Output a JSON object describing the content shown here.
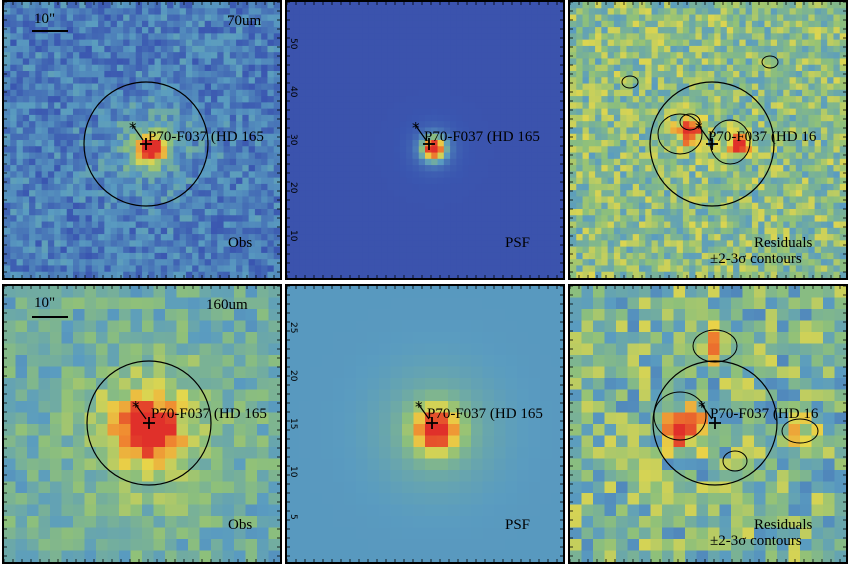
{
  "rows": [
    {
      "band": "70um",
      "scale_bar": "10\"",
      "panels": [
        {
          "id": "obs",
          "label": "Obs",
          "source": "P70-F037 (HD 165"
        },
        {
          "id": "psf",
          "label": "PSF",
          "source": "P70-F037 (HD 165"
        },
        {
          "id": "res",
          "label": "Residuals",
          "label2": "±2-3σ contours",
          "source": "P70-F037 (HD 16"
        }
      ],
      "axis_ticks": [
        "50",
        "40",
        "30",
        "20",
        "10"
      ]
    },
    {
      "band": "160um",
      "scale_bar": "10\"",
      "panels": [
        {
          "id": "obs",
          "label": "Obs",
          "source": "P70-F037 (HD 165"
        },
        {
          "id": "psf",
          "label": "PSF",
          "source": "P70-F037 (HD 165"
        },
        {
          "id": "res",
          "label": "Residuals",
          "label2": "±2-3σ contours",
          "source": "P70-F037 (HD 16"
        }
      ],
      "axis_ticks": [
        "25",
        "20",
        "15",
        "10",
        "5"
      ]
    }
  ],
  "colors": {
    "deep": "#4a2a8a",
    "blue": "#3a56b0",
    "teal": "#5a9cc0",
    "green": "#8ec07a",
    "yellow": "#e8d84a",
    "orange": "#f08a30",
    "red": "#e0302a",
    "psf_bg_70": "#3e50b0",
    "psf_bg_160": "#5a9cc8"
  }
}
